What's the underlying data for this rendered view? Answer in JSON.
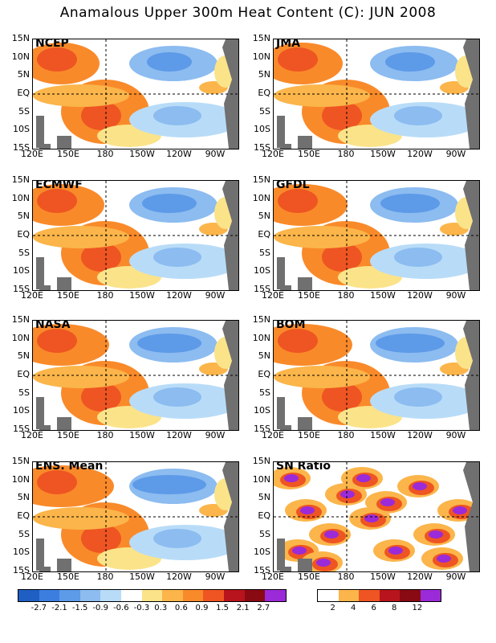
{
  "title": "Anamalous Upper 300m Heat Content (C): JUN 2008",
  "panels": [
    {
      "name": "NCEP"
    },
    {
      "name": "JMA"
    },
    {
      "name": "ECMWF"
    },
    {
      "name": "GFDL"
    },
    {
      "name": "NASA"
    },
    {
      "name": "BOM"
    },
    {
      "name": "ENS. Mean"
    },
    {
      "name": "SN Ratio"
    }
  ],
  "y_ticks": [
    "15N",
    "10N",
    "5N",
    "EQ",
    "5S",
    "10S",
    "15S"
  ],
  "x_ticks": [
    "120E",
    "150E",
    "180",
    "150W",
    "120W",
    "90W"
  ],
  "anomaly_colorbar": {
    "colors": [
      "#1f5fc4",
      "#3b7ee0",
      "#5d9ae8",
      "#8cbcf0",
      "#b8dcf8",
      "#ffffff",
      "#fbe38a",
      "#fbb54a",
      "#f98a2a",
      "#ee5522",
      "#b8141e",
      "#8a0a14",
      "#9b2ad8"
    ],
    "labels": [
      "-2.7",
      "-2.1",
      "-1.5",
      "-0.9",
      "-0.6",
      "-0.3",
      "0.3",
      "0.6",
      "0.9",
      "1.5",
      "2.1",
      "2.7"
    ]
  },
  "snratio_colorbar": {
    "colors": [
      "#ffffff",
      "#fbb54a",
      "#ee5522",
      "#b8141e",
      "#8a0a14",
      "#9b2ad8"
    ],
    "labels": [
      "2",
      "4",
      "6",
      "8",
      "12"
    ]
  }
}
